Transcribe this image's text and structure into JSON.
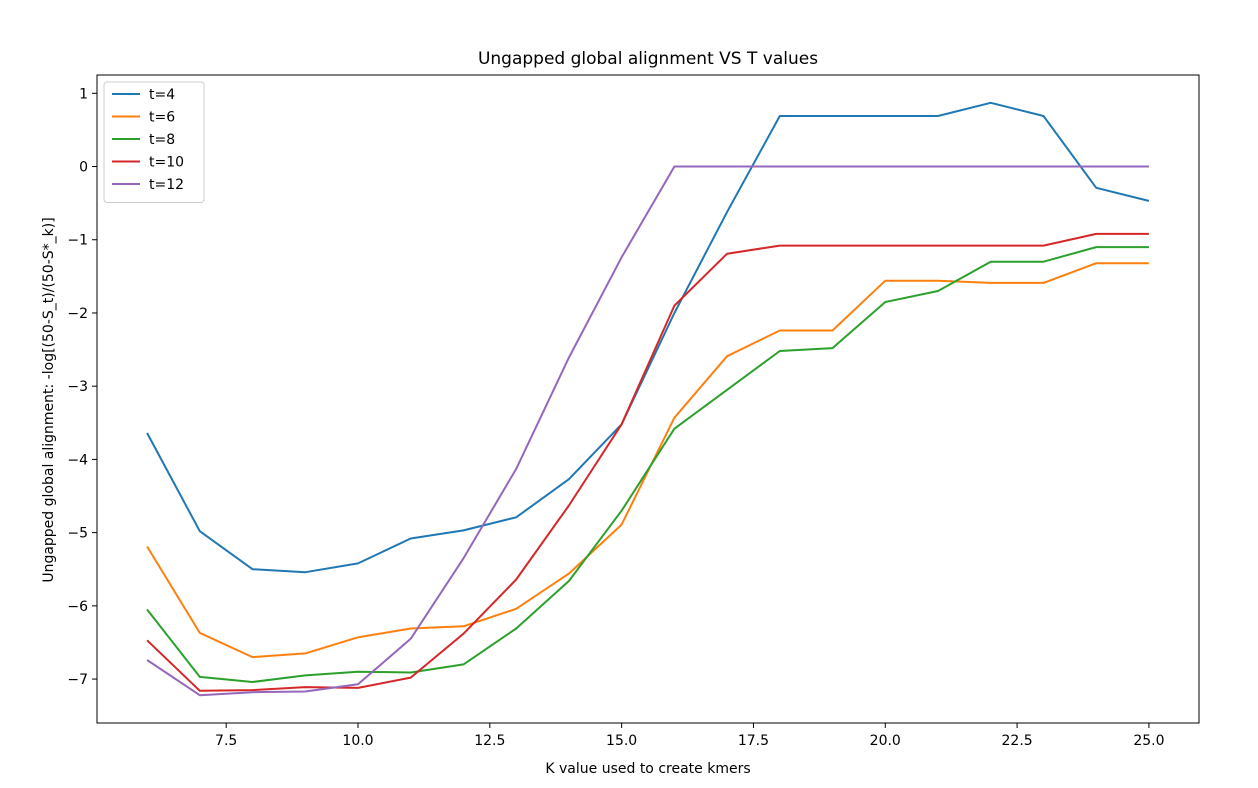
{
  "chart_data": {
    "type": "line",
    "title": "Ungapped global alignment VS T values",
    "xlabel": "K value used to create kmers",
    "ylabel": "Ungapped global alignment: -log[(50-S_t)/(50-S*_k)]",
    "xlim": [
      5.05,
      25.95
    ],
    "ylim": [
      -7.6,
      1.25
    ],
    "x_ticks": [
      7.5,
      10.0,
      12.5,
      15.0,
      17.5,
      20.0,
      22.5,
      25.0
    ],
    "x_tick_labels": [
      "7.5",
      "10.0",
      "12.5",
      "15.0",
      "17.5",
      "20.0",
      "22.5",
      "25.0"
    ],
    "y_ticks": [
      1,
      0,
      -1,
      -2,
      -3,
      -4,
      -5,
      -6,
      -7
    ],
    "y_tick_labels": [
      "1",
      "0",
      "−1",
      "−2",
      "−3",
      "−4",
      "−5",
      "−6",
      "−7"
    ],
    "legend_position": "top-left",
    "x": [
      6,
      7,
      8,
      9,
      10,
      11,
      12,
      13,
      14,
      15,
      16,
      17,
      18,
      19,
      20,
      21,
      22,
      23,
      24,
      25
    ],
    "series": [
      {
        "name": "t=4",
        "color": "#1f77b4",
        "values": [
          -3.64,
          -4.98,
          -5.5,
          -5.54,
          -5.42,
          -5.08,
          -4.97,
          -4.79,
          -4.27,
          -3.52,
          -2.0,
          -0.62,
          0.69,
          0.69,
          0.69,
          0.69,
          0.87,
          0.69,
          -0.29,
          -0.47
        ]
      },
      {
        "name": "t=6",
        "color": "#ff7f0e",
        "values": [
          -5.19,
          -6.37,
          -6.7,
          -6.65,
          -6.43,
          -6.31,
          -6.28,
          -6.04,
          -5.56,
          -4.89,
          -3.43,
          -2.59,
          -2.24,
          -2.24,
          -1.56,
          -1.56,
          -1.59,
          -1.59,
          -1.32,
          -1.32
        ]
      },
      {
        "name": "t=8",
        "color": "#2ca02c",
        "values": [
          -6.05,
          -6.97,
          -7.04,
          -6.95,
          -6.9,
          -6.91,
          -6.8,
          -6.31,
          -5.66,
          -4.7,
          -3.58,
          -3.05,
          -2.52,
          -2.48,
          -1.85,
          -1.7,
          -1.3,
          -1.3,
          -1.1,
          -1.1
        ]
      },
      {
        "name": "t=10",
        "color": "#d62728",
        "values": [
          -6.47,
          -7.16,
          -7.15,
          -7.11,
          -7.12,
          -6.98,
          -6.38,
          -5.64,
          -4.63,
          -3.52,
          -1.9,
          -1.19,
          -1.08,
          -1.08,
          -1.08,
          -1.08,
          -1.08,
          -1.08,
          -0.92,
          -0.92
        ]
      },
      {
        "name": "t=12",
        "color": "#9467bd",
        "values": [
          -6.74,
          -7.22,
          -7.18,
          -7.17,
          -7.07,
          -6.45,
          -5.35,
          -4.13,
          -2.61,
          -1.24,
          0.0,
          0.0,
          0.0,
          0.0,
          0.0,
          0.0,
          0.0,
          0.0,
          0.0,
          0.0
        ]
      }
    ]
  }
}
